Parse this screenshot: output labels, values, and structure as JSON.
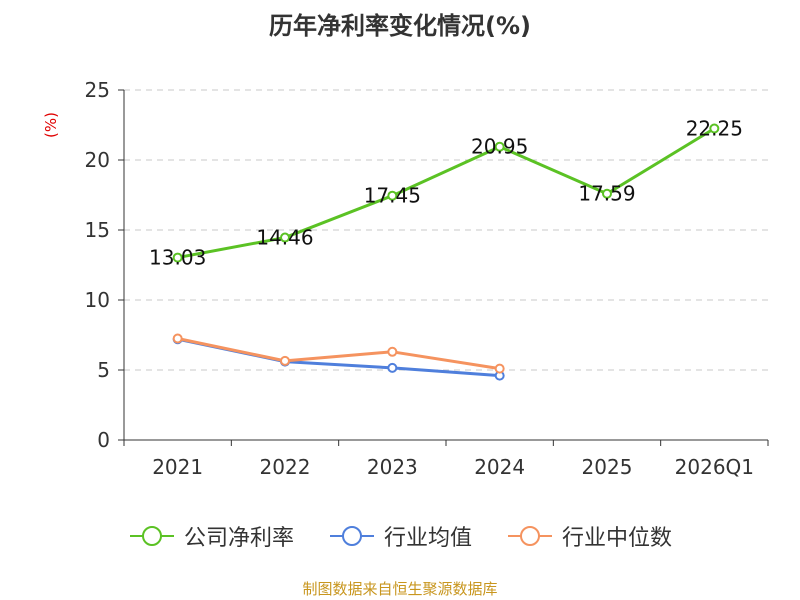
{
  "title": "历年净利率变化情况(%)",
  "source": "制图数据来自恒生聚源数据库",
  "chart_data": {
    "type": "line",
    "title": "历年净利率变化情况(%)",
    "ylabel": "(%)",
    "xlabel": "",
    "categories": [
      "2021",
      "2022",
      "2023",
      "2024",
      "2025",
      "2026Q1"
    ],
    "ylim": [
      0,
      25
    ],
    "yticks": [
      0,
      5,
      10,
      15,
      20,
      25
    ],
    "grid": true,
    "legend": "bottom",
    "series": [
      {
        "name": "公司净利率",
        "color": "#5bc224",
        "values": [
          13.03,
          14.46,
          17.45,
          20.95,
          17.59,
          22.25
        ],
        "show_labels": true
      },
      {
        "name": "行业均值",
        "color": "#4f7fdc",
        "values": [
          7.2,
          5.6,
          5.15,
          4.6,
          null,
          null
        ],
        "show_labels": false
      },
      {
        "name": "行业中位数",
        "color": "#f5935f",
        "values": [
          7.25,
          5.65,
          6.3,
          5.1,
          null,
          null
        ],
        "show_labels": false
      }
    ]
  }
}
